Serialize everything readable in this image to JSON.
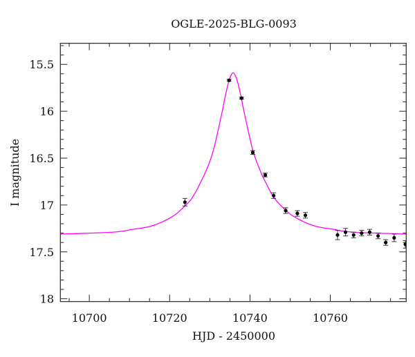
{
  "chart_data": {
    "type": "scatter",
    "title": "OGLE-2025-BLG-0093",
    "xlabel": "HJD - 2450000",
    "ylabel": "I magnitude",
    "xlim": [
      10692.8,
      10778.9
    ],
    "ylim": [
      18.03,
      15.275
    ],
    "y_inverted": true,
    "grid": false,
    "x_ticks": [
      10700,
      10720,
      10740,
      10760
    ],
    "x_minor_step": 5,
    "y_ticks": [
      "15.5",
      "16",
      "16.5",
      "17",
      "17.5",
      "18"
    ],
    "y_minor_step": 0.1,
    "series": [
      {
        "kind": "data",
        "color": "#000000",
        "points": [
          {
            "x": 10723.8,
            "y": 16.97,
            "err": 0.04
          },
          {
            "x": 10734.8,
            "y": 15.67,
            "err": 0.01
          },
          {
            "x": 10737.9,
            "y": 15.86,
            "err": 0.01
          },
          {
            "x": 10740.7,
            "y": 16.44,
            "err": 0.02
          },
          {
            "x": 10743.8,
            "y": 16.68,
            "err": 0.02
          },
          {
            "x": 10745.9,
            "y": 16.9,
            "err": 0.03
          },
          {
            "x": 10748.9,
            "y": 17.06,
            "err": 0.03
          },
          {
            "x": 10751.8,
            "y": 17.09,
            "err": 0.03
          },
          {
            "x": 10753.8,
            "y": 17.11,
            "err": 0.03
          },
          {
            "x": 10761.8,
            "y": 17.32,
            "err": 0.05
          },
          {
            "x": 10763.8,
            "y": 17.29,
            "err": 0.04
          },
          {
            "x": 10765.8,
            "y": 17.32,
            "err": 0.03
          },
          {
            "x": 10767.8,
            "y": 17.3,
            "err": 0.03
          },
          {
            "x": 10769.8,
            "y": 17.29,
            "err": 0.03
          },
          {
            "x": 10771.9,
            "y": 17.33,
            "err": 0.03
          },
          {
            "x": 10773.8,
            "y": 17.4,
            "err": 0.03
          },
          {
            "x": 10775.9,
            "y": 17.35,
            "err": 0.04
          },
          {
            "x": 10778.7,
            "y": 17.42,
            "err": 0.04
          }
        ]
      },
      {
        "kind": "model",
        "color": "#ff00ff",
        "points": [
          [
            10692.8,
            17.31
          ],
          [
            10705.8,
            17.29
          ],
          [
            10710.8,
            17.26
          ],
          [
            10715.8,
            17.22
          ],
          [
            10720.8,
            17.12
          ],
          [
            10723.8,
            17.01
          ],
          [
            10725.8,
            16.91
          ],
          [
            10728.8,
            16.66
          ],
          [
            10730.8,
            16.43
          ],
          [
            10732.8,
            16.06
          ],
          [
            10733.8,
            15.85
          ],
          [
            10734.8,
            15.67
          ],
          [
            10735.8,
            15.59
          ],
          [
            10736.8,
            15.67
          ],
          [
            10737.8,
            15.85
          ],
          [
            10738.8,
            16.06
          ],
          [
            10740.8,
            16.43
          ],
          [
            10742.8,
            16.66
          ],
          [
            10743.8,
            16.75
          ],
          [
            10745.8,
            16.91
          ],
          [
            10747.8,
            17.01
          ],
          [
            10750.8,
            17.12
          ],
          [
            10755.8,
            17.22
          ],
          [
            10760.8,
            17.26
          ],
          [
            10765.8,
            17.29
          ],
          [
            10778.9,
            17.31
          ]
        ]
      }
    ]
  }
}
